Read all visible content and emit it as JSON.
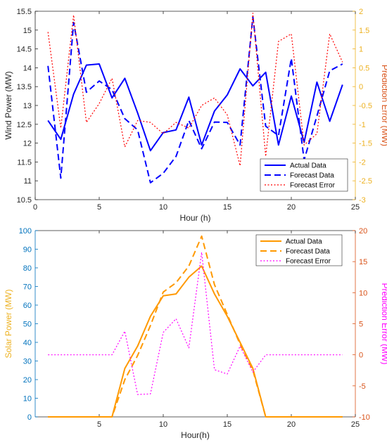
{
  "chart_data": [
    {
      "type": "line",
      "xlabel": "Hour (h)",
      "ylabel": "Wind Power (MW)",
      "ylabel_right": "Prediction Error (MW)",
      "xlim": [
        0,
        25
      ],
      "ylim": [
        10.5,
        15.5
      ],
      "ylim_right": [
        -3,
        2
      ],
      "xticks": [
        0,
        5,
        10,
        15,
        20,
        25
      ],
      "yticks": [
        10.5,
        11,
        11.5,
        12,
        12.5,
        13,
        13.5,
        14,
        14.5,
        15,
        15.5
      ],
      "yticks_right": [
        -3,
        -2.5,
        -2,
        -1.5,
        -1,
        -0.5,
        0,
        0.5,
        1,
        1.5,
        2
      ],
      "right_axis_color": "#edb120",
      "right_label_color": "#d95319",
      "legend_position": "bottom-right",
      "x": [
        1,
        2,
        3,
        4,
        5,
        6,
        7,
        8,
        9,
        10,
        11,
        12,
        13,
        14,
        15,
        16,
        17,
        18,
        19,
        20,
        21,
        22,
        23,
        24
      ],
      "series": [
        {
          "name": "Actual Data",
          "axis": "left",
          "style": "solid",
          "color": "#0000ff",
          "values": [
            12.6,
            12.1,
            13.3,
            14.07,
            14.1,
            13.2,
            13.72,
            12.8,
            11.8,
            12.28,
            12.35,
            13.22,
            11.95,
            12.85,
            13.28,
            13.97,
            13.52,
            13.88,
            11.95,
            13.25,
            12.02,
            13.62,
            12.58,
            13.55
          ]
        },
        {
          "name": "Forecast Data",
          "axis": "left",
          "style": "dashed",
          "color": "#0000ff",
          "values": [
            14.05,
            11.07,
            15.2,
            13.35,
            13.65,
            13.42,
            12.65,
            12.35,
            10.95,
            11.2,
            11.65,
            12.6,
            11.85,
            12.56,
            12.55,
            11.95,
            15.35,
            12.45,
            12.2,
            14.25,
            11.55,
            12.72,
            13.92,
            14.1
          ]
        },
        {
          "name": "Forecast Error",
          "axis": "right",
          "style": "dotted",
          "color": "#ff0000",
          "values": [
            1.45,
            -1.1,
            1.9,
            -0.95,
            -0.45,
            0.22,
            -1.6,
            -0.9,
            -0.95,
            -1.25,
            -0.95,
            -1.1,
            -0.5,
            -0.3,
            -0.75,
            -2.1,
            1.95,
            -1.85,
            1.2,
            1.4,
            -1.55,
            -1.25,
            1.4,
            0.65
          ]
        }
      ]
    },
    {
      "type": "line",
      "xlabel": "Hour(h)",
      "ylabel": "Solar Power (MW)",
      "ylabel_right": "Prediction Error (MW)",
      "xlim": [
        0,
        25
      ],
      "ylim": [
        0,
        100
      ],
      "ylim_right": [
        -10,
        20
      ],
      "xticks": [
        5,
        10,
        15,
        20,
        25
      ],
      "yticks": [
        0,
        10,
        20,
        30,
        40,
        50,
        60,
        70,
        80,
        90,
        100
      ],
      "yticks_right": [
        -10,
        -5,
        0,
        5,
        10,
        15,
        20
      ],
      "left_axis_color": "#0072bd",
      "left_label_color": "#edb120",
      "right_axis_color": "#d95319",
      "right_label_color": "#ff00ff",
      "legend_position": "top-right",
      "x": [
        1,
        2,
        3,
        4,
        5,
        6,
        7,
        8,
        9,
        10,
        11,
        12,
        13,
        14,
        15,
        16,
        17,
        18,
        19,
        20,
        21,
        22,
        23,
        24
      ],
      "series": [
        {
          "name": "Actual Data",
          "axis": "left",
          "style": "solid",
          "color": "#ff9900",
          "values": [
            0,
            0,
            0,
            0,
            0,
            0,
            26,
            38,
            54,
            65,
            66,
            75,
            81,
            66,
            54,
            40,
            26,
            0,
            0,
            0,
            0,
            0,
            0,
            0
          ]
        },
        {
          "name": "Forecast Data",
          "axis": "left",
          "style": "dashed",
          "color": "#ff9900",
          "values": [
            0,
            0,
            0,
            0,
            0,
            0,
            20,
            33,
            49,
            67,
            72,
            81,
            97,
            71,
            55,
            39,
            25,
            0,
            0,
            0,
            0,
            0,
            0,
            0
          ]
        },
        {
          "name": "Forecast Error",
          "axis": "right",
          "style": "dotted",
          "color": "#ff00ff",
          "values": [
            0,
            0,
            0,
            0,
            0,
            0,
            3.8,
            -6.4,
            -6.3,
            3.6,
            5.8,
            1.1,
            16.5,
            -2.4,
            -3.1,
            1.4,
            -2.8,
            0,
            0,
            0,
            0,
            0,
            0,
            0
          ]
        }
      ]
    }
  ]
}
